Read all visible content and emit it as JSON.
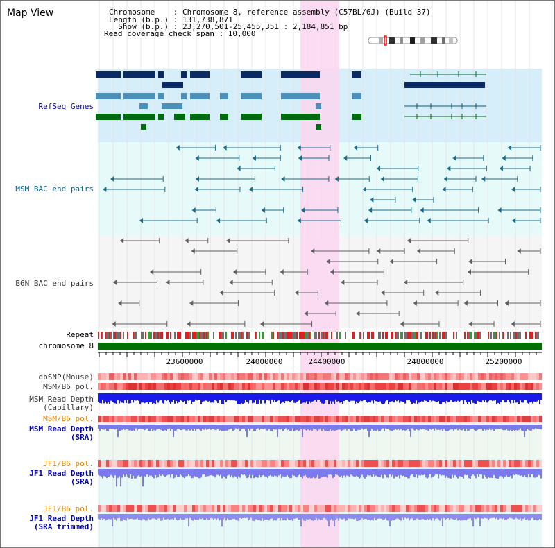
{
  "view_title": "Map View",
  "info": {
    "line1": "Chromosome    : Chromosome 8, reference assembly (C57BL/6J) (Build 37)",
    "line2": "Length (b.p.) : 131,738,871",
    "line3": "  Show (b.p.) : 23,270,501-25,455,351 : 2,184,851 bp",
    "line4": "Read coverage check span : 10,000"
  },
  "tracks": {
    "refseq": "RefSeq Genes",
    "msm_bac": "MSM BAC end pairs",
    "b6n_bac": "B6N BAC end pairs",
    "repeat": "Repeat",
    "chromosome": "chromosome 8",
    "dbsnp": "dbSNP(Mouse)",
    "msm_b6_pol": "MSM/B6 pol.",
    "msm_depth_cap_1": "MSM Read Depth",
    "msm_depth_cap_2": "(Capillary)",
    "msm_b6_pol_2": "MSM/B6 pol.",
    "msm_depth_sra_1": "MSM Read Depth",
    "msm_depth_sra_2": "(SRA)",
    "jf1_b6_pol": "JF1/B6 pol.",
    "jf1_depth_sra_1": "JF1 Read Depth",
    "jf1_depth_sra_2": "(SRA)",
    "jf1_b6_pol_2": "JF1/B6 pol.",
    "jf1_depth_trim_1": "JF1 Read Depth",
    "jf1_depth_trim_2": "(SRA trimmed)"
  },
  "axis_ticks": [
    "23600000",
    "24000000",
    "24400000",
    "24800000",
    "25200000"
  ],
  "colors": {
    "refseq_bg": "#d6eefa",
    "bac_bg": "#e6fafa",
    "b6n_bg": "#f5f5f5",
    "highlight": "#fbd6f0",
    "label_blue": "#0000aa",
    "label_teal": "#006080",
    "label_orange": "#e08000",
    "chrom_green": "#007000"
  }
}
